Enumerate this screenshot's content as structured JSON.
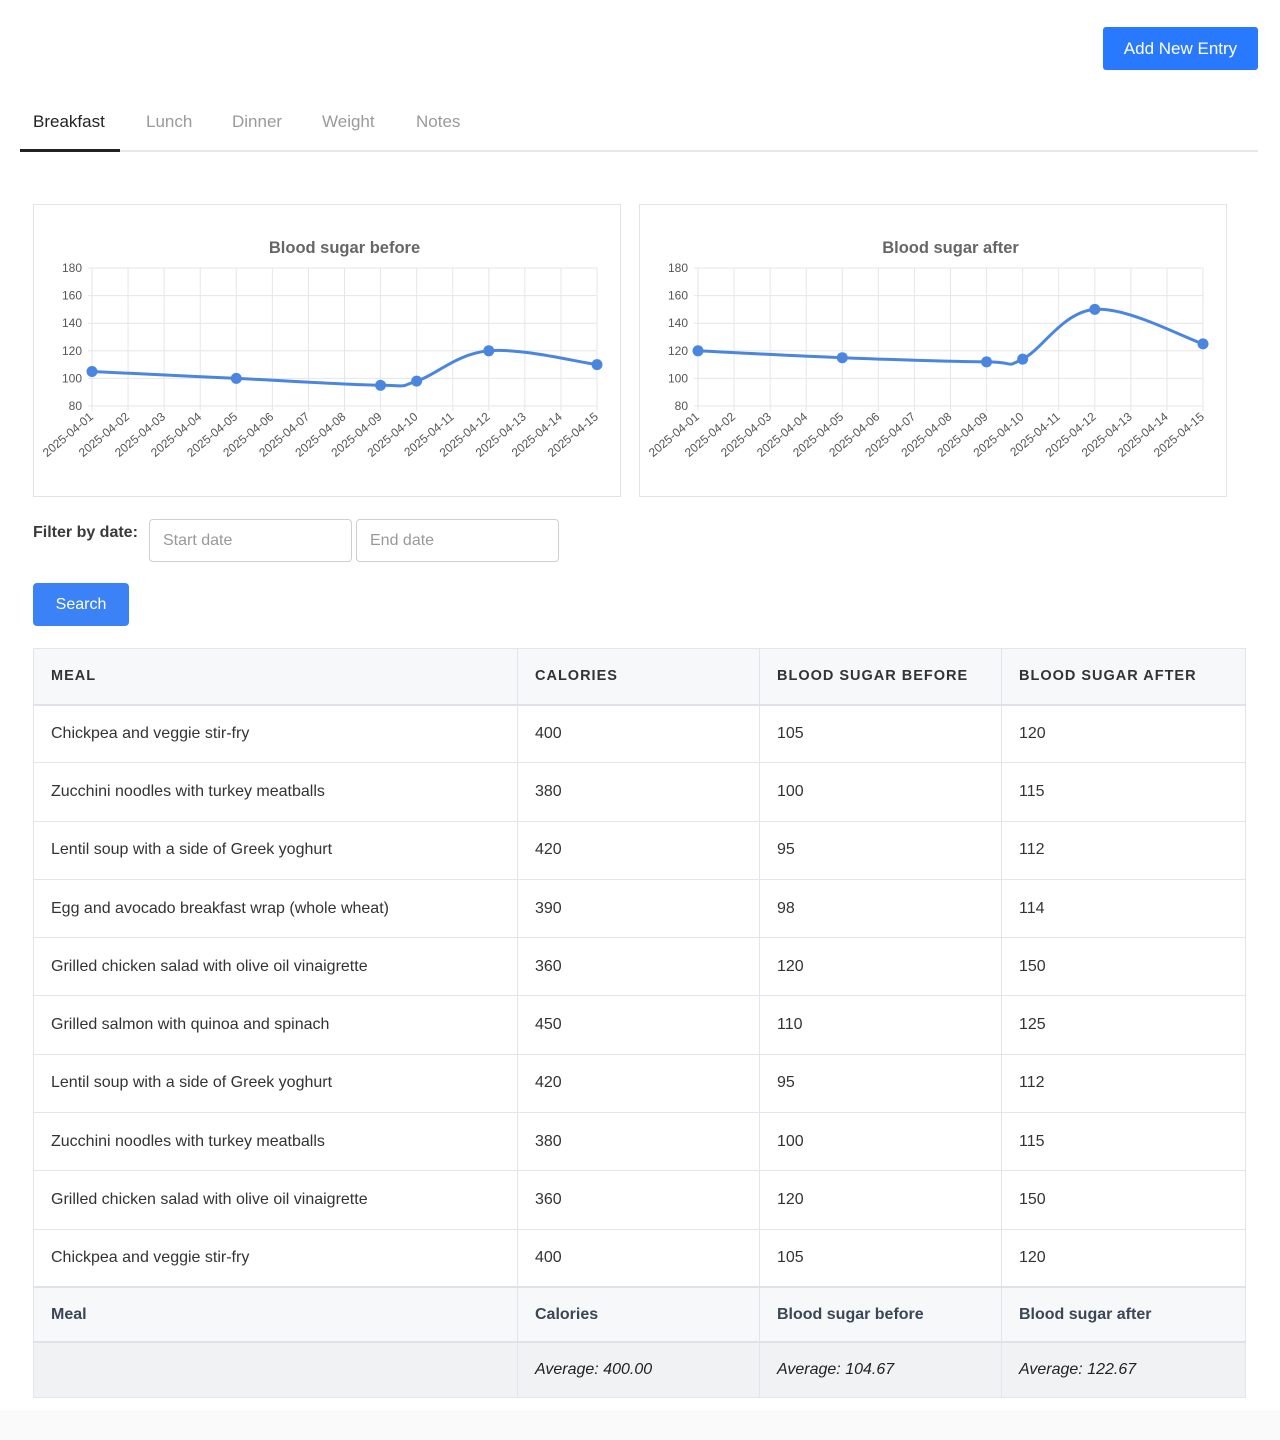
{
  "header": {
    "add_button_label": "Add New Entry"
  },
  "tabs": [
    {
      "label": "Breakfast",
      "active": true
    },
    {
      "label": "Lunch",
      "active": false
    },
    {
      "label": "Dinner",
      "active": false
    },
    {
      "label": "Weight",
      "active": false
    },
    {
      "label": "Notes",
      "active": false
    }
  ],
  "chart_data": [
    {
      "type": "line",
      "title": "Blood sugar before",
      "x": [
        "2025-04-01",
        "2025-04-02",
        "2025-04-03",
        "2025-04-04",
        "2025-04-05",
        "2025-04-06",
        "2025-04-07",
        "2025-04-08",
        "2025-04-09",
        "2025-04-10",
        "2025-04-11",
        "2025-04-12",
        "2025-04-13",
        "2025-04-14",
        "2025-04-15"
      ],
      "series": [
        {
          "points": [
            {
              "x": "2025-04-01",
              "y": 105
            },
            {
              "x": "2025-04-05",
              "y": 100
            },
            {
              "x": "2025-04-09",
              "y": 95
            },
            {
              "x": "2025-04-10",
              "y": 98
            },
            {
              "x": "2025-04-12",
              "y": 120
            },
            {
              "x": "2025-04-15",
              "y": 110
            }
          ]
        }
      ],
      "ylim": [
        80,
        180
      ],
      "yticks": [
        80,
        100,
        120,
        140,
        160,
        180
      ],
      "grid": true,
      "color": "#4a86e0"
    },
    {
      "type": "line",
      "title": "Blood sugar after",
      "x": [
        "2025-04-01",
        "2025-04-02",
        "2025-04-03",
        "2025-04-04",
        "2025-04-05",
        "2025-04-06",
        "2025-04-07",
        "2025-04-08",
        "2025-04-09",
        "2025-04-10",
        "2025-04-11",
        "2025-04-12",
        "2025-04-13",
        "2025-04-14",
        "2025-04-15"
      ],
      "series": [
        {
          "points": [
            {
              "x": "2025-04-01",
              "y": 120
            },
            {
              "x": "2025-04-05",
              "y": 115
            },
            {
              "x": "2025-04-09",
              "y": 112
            },
            {
              "x": "2025-04-10",
              "y": 114
            },
            {
              "x": "2025-04-12",
              "y": 150
            },
            {
              "x": "2025-04-15",
              "y": 125
            }
          ]
        }
      ],
      "ylim": [
        80,
        180
      ],
      "yticks": [
        80,
        100,
        120,
        140,
        160,
        180
      ],
      "grid": true,
      "color": "#4a86e0"
    }
  ],
  "filter": {
    "label": "Filter by date:",
    "start_placeholder": "Start date",
    "end_placeholder": "End date",
    "search_label": "Search"
  },
  "table": {
    "headers": [
      "MEAL",
      "CALORIES",
      "BLOOD SUGAR BEFORE",
      "BLOOD SUGAR AFTER"
    ],
    "rows": [
      [
        "Chickpea and veggie stir-fry",
        "400",
        "105",
        "120"
      ],
      [
        "Zucchini noodles with turkey meatballs",
        "380",
        "100",
        "115"
      ],
      [
        "Lentil soup with a side of Greek yoghurt",
        "420",
        "95",
        "112"
      ],
      [
        "Egg and avocado breakfast wrap (whole wheat)",
        "390",
        "98",
        "114"
      ],
      [
        "Grilled chicken salad with olive oil vinaigrette",
        "360",
        "120",
        "150"
      ],
      [
        "Grilled salmon with quinoa and spinach",
        "450",
        "110",
        "125"
      ],
      [
        "Lentil soup with a side of Greek yoghurt",
        "420",
        "95",
        "112"
      ],
      [
        "Zucchini noodles with turkey meatballs",
        "380",
        "100",
        "115"
      ],
      [
        "Grilled chicken salad with olive oil vinaigrette",
        "360",
        "120",
        "150"
      ],
      [
        "Chickpea and veggie stir-fry",
        "400",
        "105",
        "120"
      ]
    ],
    "footer_headers": [
      "Meal",
      "Calories",
      "Blood sugar before",
      "Blood sugar after"
    ],
    "averages": [
      "",
      "Average: 400.00",
      "Average: 104.67",
      "Average: 122.67"
    ]
  }
}
